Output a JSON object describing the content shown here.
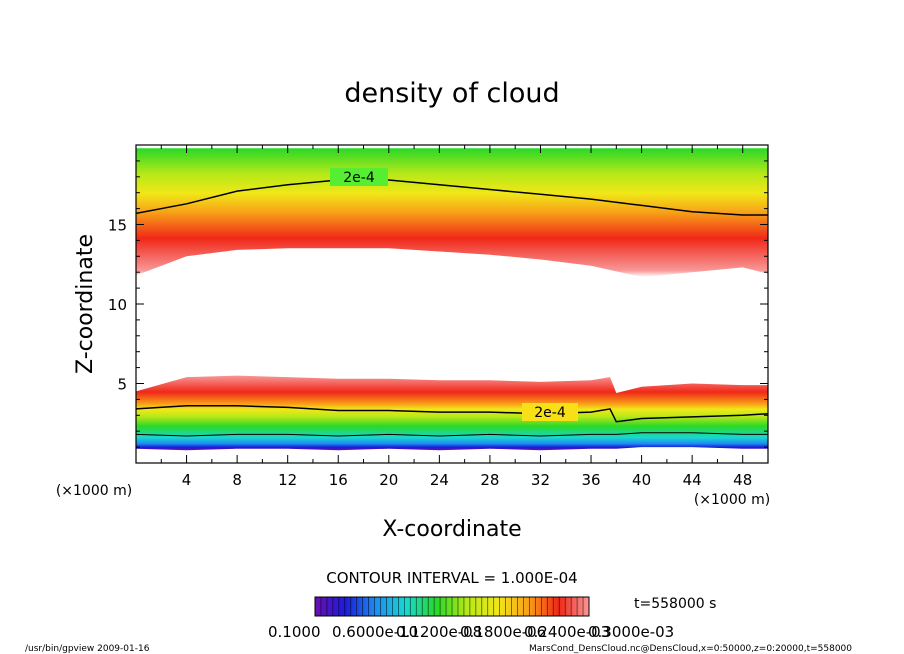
{
  "chart_data": {
    "type": "heatmap",
    "title": "density of cloud",
    "xlabel": "X-coordinate",
    "ylabel": "Z-coordinate",
    "x_unit": "(×1000 m)",
    "z_unit": "(×1000 m)",
    "xlim": [
      0,
      50
    ],
    "ylim": [
      0,
      20
    ],
    "x_ticks": [
      4,
      8,
      12,
      16,
      20,
      24,
      28,
      32,
      36,
      40,
      44,
      48
    ],
    "y_ticks": [
      5,
      10,
      15
    ],
    "contour_label": "2e-4",
    "contour_interval_text": "CONTOUR INTERVAL = 1.000E-04",
    "time_text": "t=558000 s",
    "colorbar_labels": [
      "0.1000",
      "0.6000e-10",
      "0.1200e-08",
      "0.1800e-06",
      "0.2400e-03",
      "0.3000e-03"
    ],
    "colormap": [
      "#6a0fb0",
      "#1c1cd8",
      "#1d8df0",
      "#19d8d0",
      "#28d828",
      "#b8e818",
      "#f0e818",
      "#f8a018",
      "#f02818",
      "#f89898",
      "#ffffff"
    ],
    "upper_layer": {
      "x": [
        0,
        4,
        8,
        12,
        16,
        20,
        24,
        28,
        32,
        36,
        40,
        44,
        48,
        50
      ],
      "z_bottom": [
        11.8,
        13.0,
        13.4,
        13.5,
        13.5,
        13.5,
        13.3,
        13.1,
        12.8,
        12.4,
        11.7,
        12.0,
        12.3,
        11.9
      ],
      "z_contour_2e-4": [
        15.7,
        16.3,
        17.1,
        17.5,
        17.8,
        17.8,
        17.5,
        17.2,
        16.9,
        16.6,
        16.2,
        15.8,
        15.6,
        15.6
      ],
      "z_top": [
        19.8,
        19.8,
        19.8,
        19.8,
        19.8,
        19.8,
        19.8,
        19.8,
        19.8,
        19.8,
        19.8,
        19.8,
        19.8,
        19.8
      ]
    },
    "lower_layer": {
      "x": [
        0,
        4,
        8,
        12,
        16,
        20,
        24,
        28,
        32,
        36,
        37.5,
        38,
        40,
        44,
        48,
        50
      ],
      "z_top": [
        4.5,
        5.4,
        5.5,
        5.4,
        5.3,
        5.3,
        5.2,
        5.2,
        5.1,
        5.2,
        5.4,
        4.4,
        4.8,
        5.0,
        4.9,
        4.9
      ],
      "z_contour_2e-4": [
        3.4,
        3.6,
        3.6,
        3.5,
        3.3,
        3.3,
        3.2,
        3.2,
        3.1,
        3.2,
        3.4,
        2.6,
        2.8,
        2.9,
        3.0,
        3.1
      ],
      "z_bottom": [
        0.9,
        0.8,
        0.9,
        0.9,
        0.8,
        0.9,
        0.8,
        0.9,
        0.8,
        0.9,
        0.9,
        0.9,
        1.0,
        1.0,
        0.9,
        0.9
      ]
    }
  },
  "footer": {
    "left": "/usr/bin/gpview   2009-01-16",
    "right": "MarsCond_DensCloud.nc@DensCloud,x=0:50000,z=0:20000,t=558000"
  }
}
